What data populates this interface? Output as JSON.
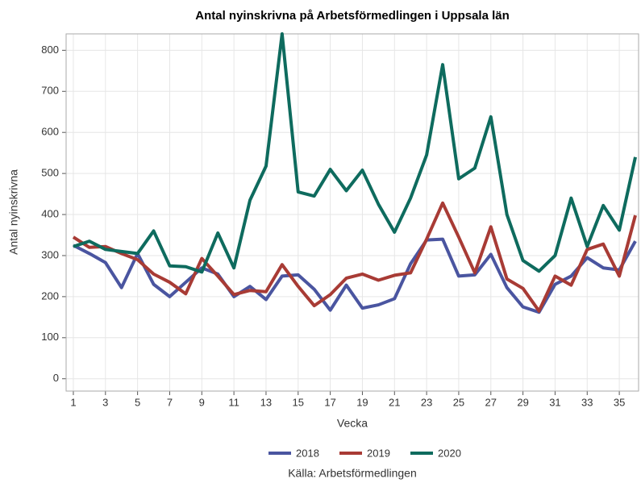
{
  "chart_data": {
    "type": "line",
    "title": "Antal nyinskrivna på Arbetsförmedlingen i Uppsala län",
    "x_label": "Vecka",
    "y_label": "Antal nyinskrivna",
    "source": "Källa: Arbetsförmedlingen",
    "x": [
      1,
      2,
      3,
      4,
      5,
      6,
      7,
      8,
      9,
      10,
      11,
      12,
      13,
      14,
      15,
      16,
      17,
      18,
      19,
      20,
      21,
      22,
      23,
      24,
      25,
      26,
      27,
      28,
      29,
      30,
      31,
      32,
      33,
      34,
      35,
      36
    ],
    "series": [
      {
        "name": "2018",
        "color": "#4a55a0",
        "values": [
          325,
          305,
          283,
          222,
          305,
          230,
          200,
          235,
          270,
          255,
          200,
          225,
          193,
          250,
          253,
          218,
          167,
          228,
          172,
          180,
          195,
          280,
          338,
          340,
          250,
          253,
          303,
          222,
          175,
          162,
          230,
          250,
          295,
          270,
          265,
          335
        ]
      },
      {
        "name": "2019",
        "color": "#a83b35",
        "values": [
          345,
          320,
          322,
          305,
          290,
          255,
          235,
          207,
          293,
          250,
          205,
          215,
          212,
          278,
          225,
          178,
          205,
          245,
          255,
          240,
          252,
          258,
          340,
          428,
          345,
          258,
          370,
          243,
          220,
          165,
          250,
          228,
          315,
          328,
          250,
          398
        ]
      },
      {
        "name": "2020",
        "color": "#0e6b5e",
        "values": [
          322,
          335,
          315,
          310,
          305,
          360,
          275,
          273,
          260,
          355,
          270,
          435,
          518,
          840,
          455,
          445,
          510,
          458,
          508,
          425,
          357,
          440,
          545,
          765,
          487,
          513,
          638,
          400,
          288,
          262,
          300,
          440,
          322,
          422,
          362,
          540
        ]
      }
    ],
    "xlim": [
      0.55,
      36.2
    ],
    "xticks": [
      1,
      3,
      5,
      7,
      9,
      11,
      13,
      15,
      17,
      19,
      21,
      23,
      25,
      27,
      29,
      31,
      33,
      35
    ],
    "ylim": [
      -30,
      840
    ],
    "yticks": [
      0,
      100,
      200,
      300,
      400,
      500,
      600,
      700,
      800
    ],
    "grid": true,
    "legend": "bottom"
  }
}
